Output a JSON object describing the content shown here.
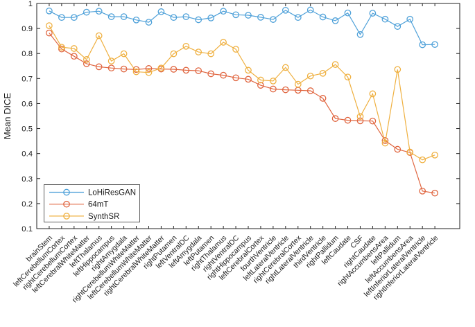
{
  "figure": {
    "background": "#ffffff",
    "axis_color": "#222222"
  },
  "chart_data": {
    "type": "line",
    "title": "",
    "xlabel": "",
    "ylabel": "Mean DICE",
    "ylim": [
      0.1,
      1.0
    ],
    "yticks": [
      1.0,
      0.9,
      0.8,
      0.7,
      0.6,
      0.5,
      0.4,
      0.3,
      0.2,
      0.1
    ],
    "ytick_labels": [
      "1",
      "0.9",
      "0.8",
      "0.7",
      "0.6",
      "0.5",
      "0.4",
      "0.3",
      "0.2",
      "0.1"
    ],
    "grid": false,
    "legend_position": "lower-left",
    "marker": "circle",
    "categories": [
      "brainStem",
      "leftCerebellumCortex",
      "rightCerebellumCortex",
      "leftCerebralWhiteMatter",
      "leftThalamus",
      "leftHippocampus",
      "rightAmygdala",
      "rightCerebellumWhiteMatter",
      "leftCerebellumWhiteMatter",
      "rightCerebralWhiteMatter",
      "rightPutamen",
      "leftVentralDC",
      "leftAmygdala",
      "leftPutamen",
      "rightThalamus",
      "rightVentralDC",
      "rightHippocampus",
      "leftCerebralCortex",
      "fourthVentricle",
      "leftLateralVentricle",
      "rightCerebralCortex",
      "rightLateralVentricle",
      "thirdVentricle",
      "rightPallidum",
      "leftCaudate",
      "CSF",
      "rightCaudate",
      "rightAccumbensArea",
      "leftPallidum",
      "leftAccumbensArea",
      "leftInferiorLateralVentricle",
      "rightInferiorLateralVentricle"
    ],
    "series": [
      {
        "name": "LoHiResGAN",
        "color": "#4FA1D9",
        "values": [
          0.97,
          0.944,
          0.944,
          0.965,
          0.969,
          0.947,
          0.947,
          0.934,
          0.925,
          0.967,
          0.944,
          0.947,
          0.935,
          0.942,
          0.969,
          0.955,
          0.953,
          0.945,
          0.936,
          0.973,
          0.944,
          0.974,
          0.946,
          0.931,
          0.962,
          0.876,
          0.961,
          0.937,
          0.908,
          0.937,
          0.835,
          0.836
        ]
      },
      {
        "name": "64mT",
        "color": "#E0653F",
        "values": [
          0.882,
          0.818,
          0.789,
          0.759,
          0.747,
          0.742,
          0.738,
          0.736,
          0.74,
          0.738,
          0.737,
          0.733,
          0.731,
          0.719,
          0.713,
          0.703,
          0.697,
          0.673,
          0.658,
          0.655,
          0.653,
          0.651,
          0.621,
          0.54,
          0.533,
          0.531,
          0.53,
          0.452,
          0.417,
          0.404,
          0.25,
          0.242
        ]
      },
      {
        "name": "SynthSR",
        "color": "#EFB040",
        "values": [
          0.911,
          0.825,
          0.82,
          0.776,
          0.871,
          0.77,
          0.799,
          0.727,
          0.724,
          0.742,
          0.799,
          0.829,
          0.806,
          0.799,
          0.845,
          0.817,
          0.733,
          0.694,
          0.69,
          0.744,
          0.677,
          0.71,
          0.721,
          0.756,
          0.706,
          0.548,
          0.639,
          0.442,
          0.736,
          0.406,
          0.375,
          0.394
        ]
      }
    ]
  }
}
